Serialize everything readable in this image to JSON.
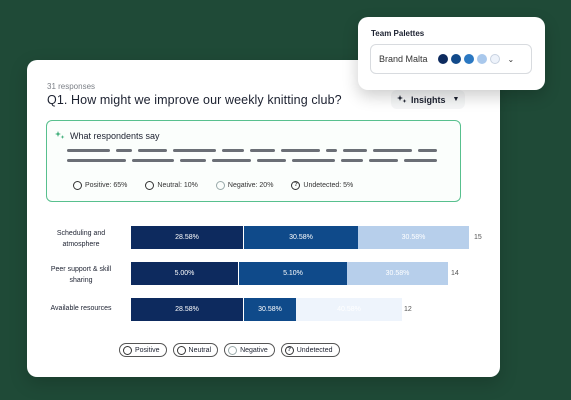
{
  "card": {
    "responses": "31 responses",
    "question": "Q1. How might we improve our weekly knitting club?",
    "insights_label": "Insights"
  },
  "summary": {
    "title": "What respondents say",
    "sentiments": [
      {
        "label": "Positive: 65%",
        "icon": "smile-icon"
      },
      {
        "label": "Neutral: 10%",
        "icon": "neutral-face-icon"
      },
      {
        "label": "Negative: 20%",
        "icon": "frown-icon"
      },
      {
        "label": "Undetected: 5%",
        "icon": "question-icon"
      }
    ]
  },
  "chart_data": {
    "type": "bar",
    "stacked": true,
    "orientation": "horizontal",
    "categories": [
      "Scheduling and atmosphere",
      "Peer support & skill sharing",
      "Available resources"
    ],
    "series": [
      {
        "name": "Positive",
        "values_labels": [
          "28.58%",
          "5.00%",
          "28.58%"
        ]
      },
      {
        "name": "Neutral",
        "values_labels": [
          "30.58%",
          "5.10%",
          "30.58%"
        ]
      },
      {
        "name": "Negative",
        "values_labels": [
          "30.58%",
          "30.58%",
          "40.58%"
        ]
      }
    ],
    "totals": [
      15,
      14,
      12
    ],
    "colors": [
      "#0d2a5e",
      "#0f4a8a",
      "#b8d0ea"
    ]
  },
  "legend": [
    "Positive",
    "Neutral",
    "Negative",
    "Undetected"
  ],
  "palette": {
    "title": "Team Palettes",
    "selected": "Brand Malta",
    "swatches": [
      "#0d2a5e",
      "#124a8a",
      "#2b78c2",
      "#a9c8ec",
      "#eef3fb"
    ]
  }
}
